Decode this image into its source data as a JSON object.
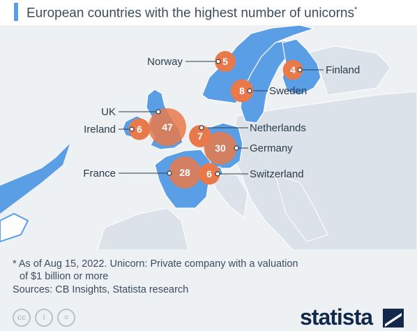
{
  "header": {
    "title": "European countries with the highest number of unicorns",
    "title_mark": "*"
  },
  "map_data": {
    "countries": [
      {
        "name": "Norway",
        "value": 5
      },
      {
        "name": "Finland",
        "value": 4
      },
      {
        "name": "Sweden",
        "value": 8
      },
      {
        "name": "UK",
        "value": 47
      },
      {
        "name": "Ireland",
        "value": 6
      },
      {
        "name": "Netherlands",
        "value": 7
      },
      {
        "name": "Germany",
        "value": 30
      },
      {
        "name": "France",
        "value": 28
      },
      {
        "name": "Switzerland",
        "value": 6
      }
    ],
    "highlight_color": "#5a9ee6",
    "bubble_color": "#e8794a",
    "base_color": "#dbe2e9"
  },
  "footer": {
    "note_line1": "* As of Aug 15, 2022. Unicorn: Private company with a valuation",
    "note_line2": "of $1 billion or more",
    "sources": "Sources: CB Insights, Statista research",
    "cc_icons": [
      "cc-icon",
      "by-icon",
      "nd-icon"
    ],
    "cc_glyphs": [
      "cc",
      "i",
      "="
    ],
    "brand": "statista"
  }
}
